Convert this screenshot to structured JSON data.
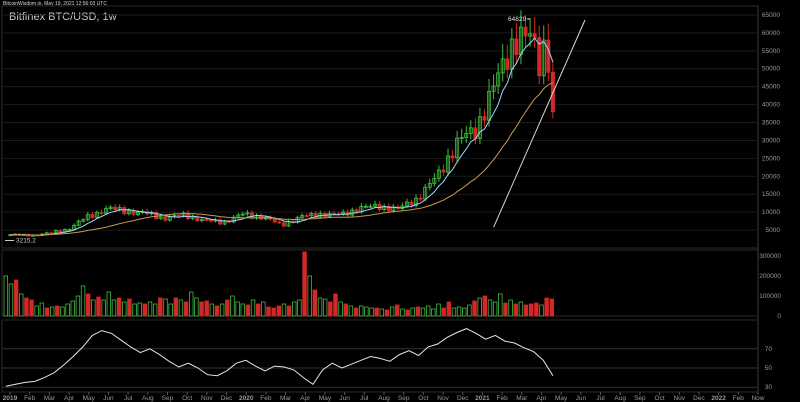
{
  "header": "BitcoinWisdom.io, May 19, 2021 12:56:03 UTC",
  "chart_data": {
    "type": "candlestick",
    "title": "Bitfinex BTC/USD, 1w",
    "colors": {
      "background": "#000000",
      "up": "#3fbf3f",
      "down": "#d32828",
      "ma_fast": "#9fd9ff",
      "ma_slow": "#c89850",
      "trendline": "#d8d8d8",
      "rsi": "#e6e6e6",
      "grid": "#1a1a1a",
      "tick_text": "#9a9a9a"
    },
    "price_axis": {
      "ticks": [
        5000,
        10000,
        15000,
        20000,
        25000,
        30000,
        35000,
        40000,
        45000,
        50000,
        55000,
        60000,
        65000
      ],
      "range": [
        0,
        67500
      ]
    },
    "volume_axis": {
      "ticks": [
        0,
        100000,
        200000,
        300000
      ],
      "range": [
        0,
        330000
      ]
    },
    "rsi_axis": {
      "ticks": [
        30,
        50,
        70
      ],
      "range": [
        25,
        100
      ]
    },
    "time_axis": [
      "2019",
      "Feb",
      "Mar",
      "Apr",
      "May",
      "Jun",
      "Jul",
      "Aug",
      "Sep",
      "Oct",
      "Nov",
      "Dec",
      "2020",
      "Feb",
      "Mar",
      "Apr",
      "May",
      "Jun",
      "Jul",
      "Aug",
      "Sep",
      "Oct",
      "Nov",
      "Dec",
      "2021",
      "Feb",
      "Mar",
      "Apr",
      "May",
      "Jun",
      "Jul",
      "Aug",
      "Sep",
      "Oct",
      "Nov",
      "Dec",
      "2022",
      "Feb",
      "Now"
    ],
    "annotations": {
      "high_label": "64829",
      "low_label": "3215.2"
    },
    "monthly_close": [
      3700,
      3450,
      4100,
      5300,
      8700,
      11000,
      10300,
      9600,
      8300,
      9200,
      7600,
      7200,
      9400,
      8700,
      6400,
      8700,
      9500,
      9200,
      11100,
      11700,
      10800,
      13800,
      19700,
      29000,
      33100,
      45100,
      58800,
      57800,
      38000
    ],
    "weekly_volume": [
      200000,
      160000,
      180000,
      110000,
      90000,
      80000,
      50000,
      65000,
      40000,
      45000,
      50000,
      45000,
      60000,
      75000,
      100000,
      150000,
      110000,
      80000,
      95000,
      80000,
      120000,
      80000,
      90000,
      70000,
      85000,
      60000,
      65000,
      60000,
      70000,
      60000,
      90000,
      85000,
      60000,
      90000,
      80000,
      70000,
      120000,
      90000,
      70000,
      75000,
      60000,
      50000,
      60000,
      80000,
      100000,
      70000,
      60000,
      55000,
      80000,
      60000,
      70000,
      45000,
      40000,
      50000,
      60000,
      50000,
      70000,
      80000,
      320000,
      200000,
      130000,
      90000,
      85000,
      70000,
      110000,
      70000,
      60000,
      50000,
      40000,
      50000,
      45000,
      40000,
      40000,
      35000,
      30000,
      45000,
      55000,
      35000,
      30000,
      40000,
      45000,
      40000,
      50000,
      35000,
      60000,
      40000,
      70000,
      40000,
      45000,
      40000,
      55000,
      75000,
      90000,
      100000,
      80000,
      70000,
      110000,
      65000,
      80000,
      60000,
      70000,
      55000,
      60000,
      65000,
      55000,
      90000,
      85000
    ],
    "rsi": [
      31,
      33,
      35,
      36,
      40,
      45,
      53,
      62,
      72,
      84,
      89,
      86,
      79,
      72,
      66,
      70,
      64,
      57,
      51,
      55,
      50,
      43,
      42,
      47,
      55,
      58,
      52,
      47,
      52,
      51,
      48,
      40,
      33,
      48,
      55,
      50,
      54,
      58,
      62,
      60,
      57,
      64,
      68,
      63,
      72,
      75,
      82,
      87,
      91,
      86,
      80,
      84,
      78,
      76,
      71,
      67,
      58,
      42
    ]
  }
}
